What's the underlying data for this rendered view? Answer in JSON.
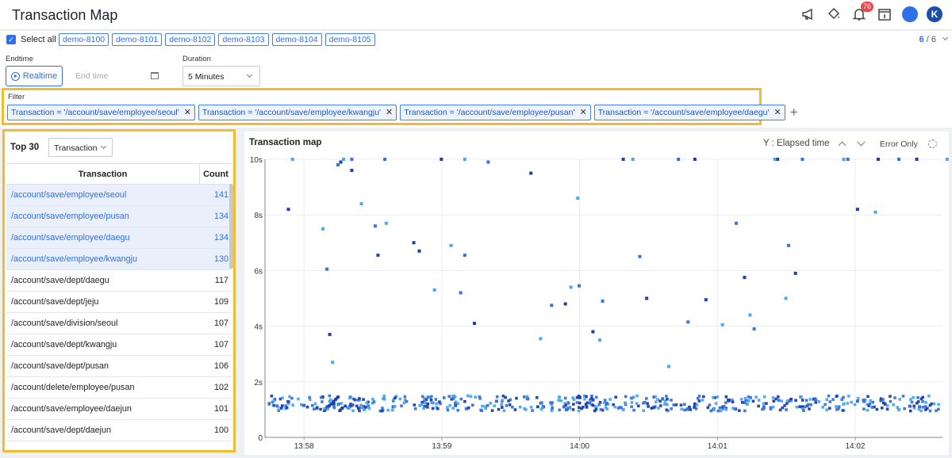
{
  "header": {
    "title": "Transaction Map",
    "notification_count": "76",
    "user_initial": "K",
    "icons": [
      "megaphone-icon",
      "paint-bucket-icon",
      "bell-icon",
      "calendar-info-icon",
      "chat-icon"
    ]
  },
  "agents": {
    "select_all_label": "Select all",
    "items": [
      "demo-8100",
      "demo-8101",
      "demo-8102",
      "demo-8103",
      "demo-8104",
      "demo-8105"
    ],
    "selected": "6",
    "total": "/ 6"
  },
  "controls": {
    "endtime_label": "Endtime",
    "realtime_label": "Realtime",
    "endtime_placeholder": "End time",
    "duration_label": "Duration",
    "duration_value": "5 Minutes"
  },
  "filter": {
    "label": "Filter",
    "chips": [
      "Transaction = '/account/save/employee/seoul'",
      "Transaction = '/account/save/employee/kwangju'",
      "Transaction = '/account/save/employee/pusan'",
      "Transaction = '/account/save/employee/daegu'"
    ]
  },
  "top": {
    "title": "Top 30",
    "group_by": "Transaction",
    "col_transaction": "Transaction",
    "col_count": "Count",
    "rows": [
      {
        "name": "/account/save/employee/seoul",
        "count": "141",
        "selected": true
      },
      {
        "name": "/account/save/employee/pusan",
        "count": "134",
        "selected": true
      },
      {
        "name": "/account/save/employee/daegu",
        "count": "134",
        "selected": true
      },
      {
        "name": "/account/save/employee/kwangju",
        "count": "130",
        "selected": true
      },
      {
        "name": "/account/save/dept/daegu",
        "count": "117",
        "selected": false
      },
      {
        "name": "/account/save/dept/jeju",
        "count": "109",
        "selected": false
      },
      {
        "name": "/account/save/division/seoul",
        "count": "107",
        "selected": false
      },
      {
        "name": "/account/save/dept/kwangju",
        "count": "107",
        "selected": false
      },
      {
        "name": "/account/save/dept/pusan",
        "count": "106",
        "selected": false
      },
      {
        "name": "/account/delete/employee/pusan",
        "count": "102",
        "selected": false
      },
      {
        "name": "/account/save/employee/daejun",
        "count": "101",
        "selected": false
      },
      {
        "name": "/account/save/dept/daejun",
        "count": "100",
        "selected": false
      }
    ]
  },
  "map": {
    "title": "Transaction map",
    "y_selector": "Y : Elapsed time",
    "error_only": "Error Only"
  },
  "colors": {
    "accent": "#2f6fe8",
    "highlight_border": "#f2bc2c",
    "point_dark": "#1f3fa8",
    "point_light": "#4aa8f0"
  },
  "chart_data": {
    "type": "scatter",
    "title": "Transaction map",
    "ylabel": "Y : Elapsed time",
    "xlim": [
      "13:57:43",
      "14:02:38"
    ],
    "ylim": [
      0,
      10
    ],
    "y_ticks": [
      0,
      2,
      4,
      6,
      8,
      10
    ],
    "y_tick_labels": [
      "0",
      "2s",
      "4s",
      "6s",
      "8s",
      "10s"
    ],
    "x_ticks": [
      "13:58",
      "13:59",
      "14:00",
      "14:01",
      "14:02"
    ],
    "grid": true,
    "x_minutes": [
      0.17,
      0.42,
      0.45,
      0.47,
      0.49,
      0.53,
      0.55,
      0.57,
      0.63,
      1.08,
      1.35,
      1.45,
      0.82,
      0.88,
      0.8,
      1.12,
      1.23,
      1.42,
      1.52,
      2.0,
      2.08,
      2.18,
      2.22,
      2.28,
      2.38,
      2.43,
      2.72,
      2.77,
      2.93,
      3.07,
      3.2,
      3.32,
      3.42,
      3.48,
      3.52,
      3.55,
      3.72,
      3.78,
      3.8,
      3.85,
      4.2,
      4.23,
      4.3,
      4.43,
      4.6,
      4.73,
      4.95,
      5.05,
      5.13,
      5.22,
      5.07,
      0.63,
      0.7,
      0.87,
      1.28,
      1.45,
      1.62,
      1.93,
      2.27,
      2.45,
      2.6,
      2.67,
      3.0,
      3.12,
      3.7,
      3.9,
      4.45,
      0.2,
      0.45,
      0.5,
      0.72,
      0.93,
      1.18,
      1.6,
      1.68,
      2.02,
      2.08,
      2.17,
      2.48,
      2.6,
      2.83,
      3.12,
      3.5,
      3.62,
      3.9,
      4.2,
      4.3,
      4.5,
      4.6,
      4.75,
      5.0,
      5.17
    ],
    "y_seconds": [
      8.2,
      7.5,
      6.05,
      3.7,
      2.7,
      9.8,
      9.9,
      10.0,
      10.0,
      7.0,
      6.9,
      6.55,
      6.55,
      7.7,
      7.6,
      6.7,
      5.3,
      5.2,
      4.1,
      3.55,
      4.75,
      4.8,
      5.4,
      5.45,
      3.8,
      3.5,
      6.5,
      5.0,
      2.55,
      4.15,
      4.95,
      4.05,
      7.7,
      5.75,
      4.4,
      3.9,
      10.0,
      5.0,
      6.9,
      5.9,
      10.0,
      10.0,
      8.2,
      8.1,
      10.0,
      10.0,
      10.0,
      10.0,
      8.1,
      8.0,
      4.1,
      9.6,
      8.4,
      10.0,
      10.0,
      10.0,
      9.9,
      9.5,
      8.6,
      4.9,
      10.0,
      10.0,
      10.0,
      10.0,
      10.0,
      10.0,
      10.0,
      10.0,
      1.1,
      1.2,
      1.0,
      1.1,
      1.2,
      1.1,
      1.3,
      1.1,
      1.2,
      1.1,
      1.2,
      1.0,
      1.1,
      1.2,
      1.2,
      1.1,
      1.1,
      1.2,
      1.3,
      1.2,
      1.0,
      1.1,
      1.2,
      1.1
    ]
  }
}
